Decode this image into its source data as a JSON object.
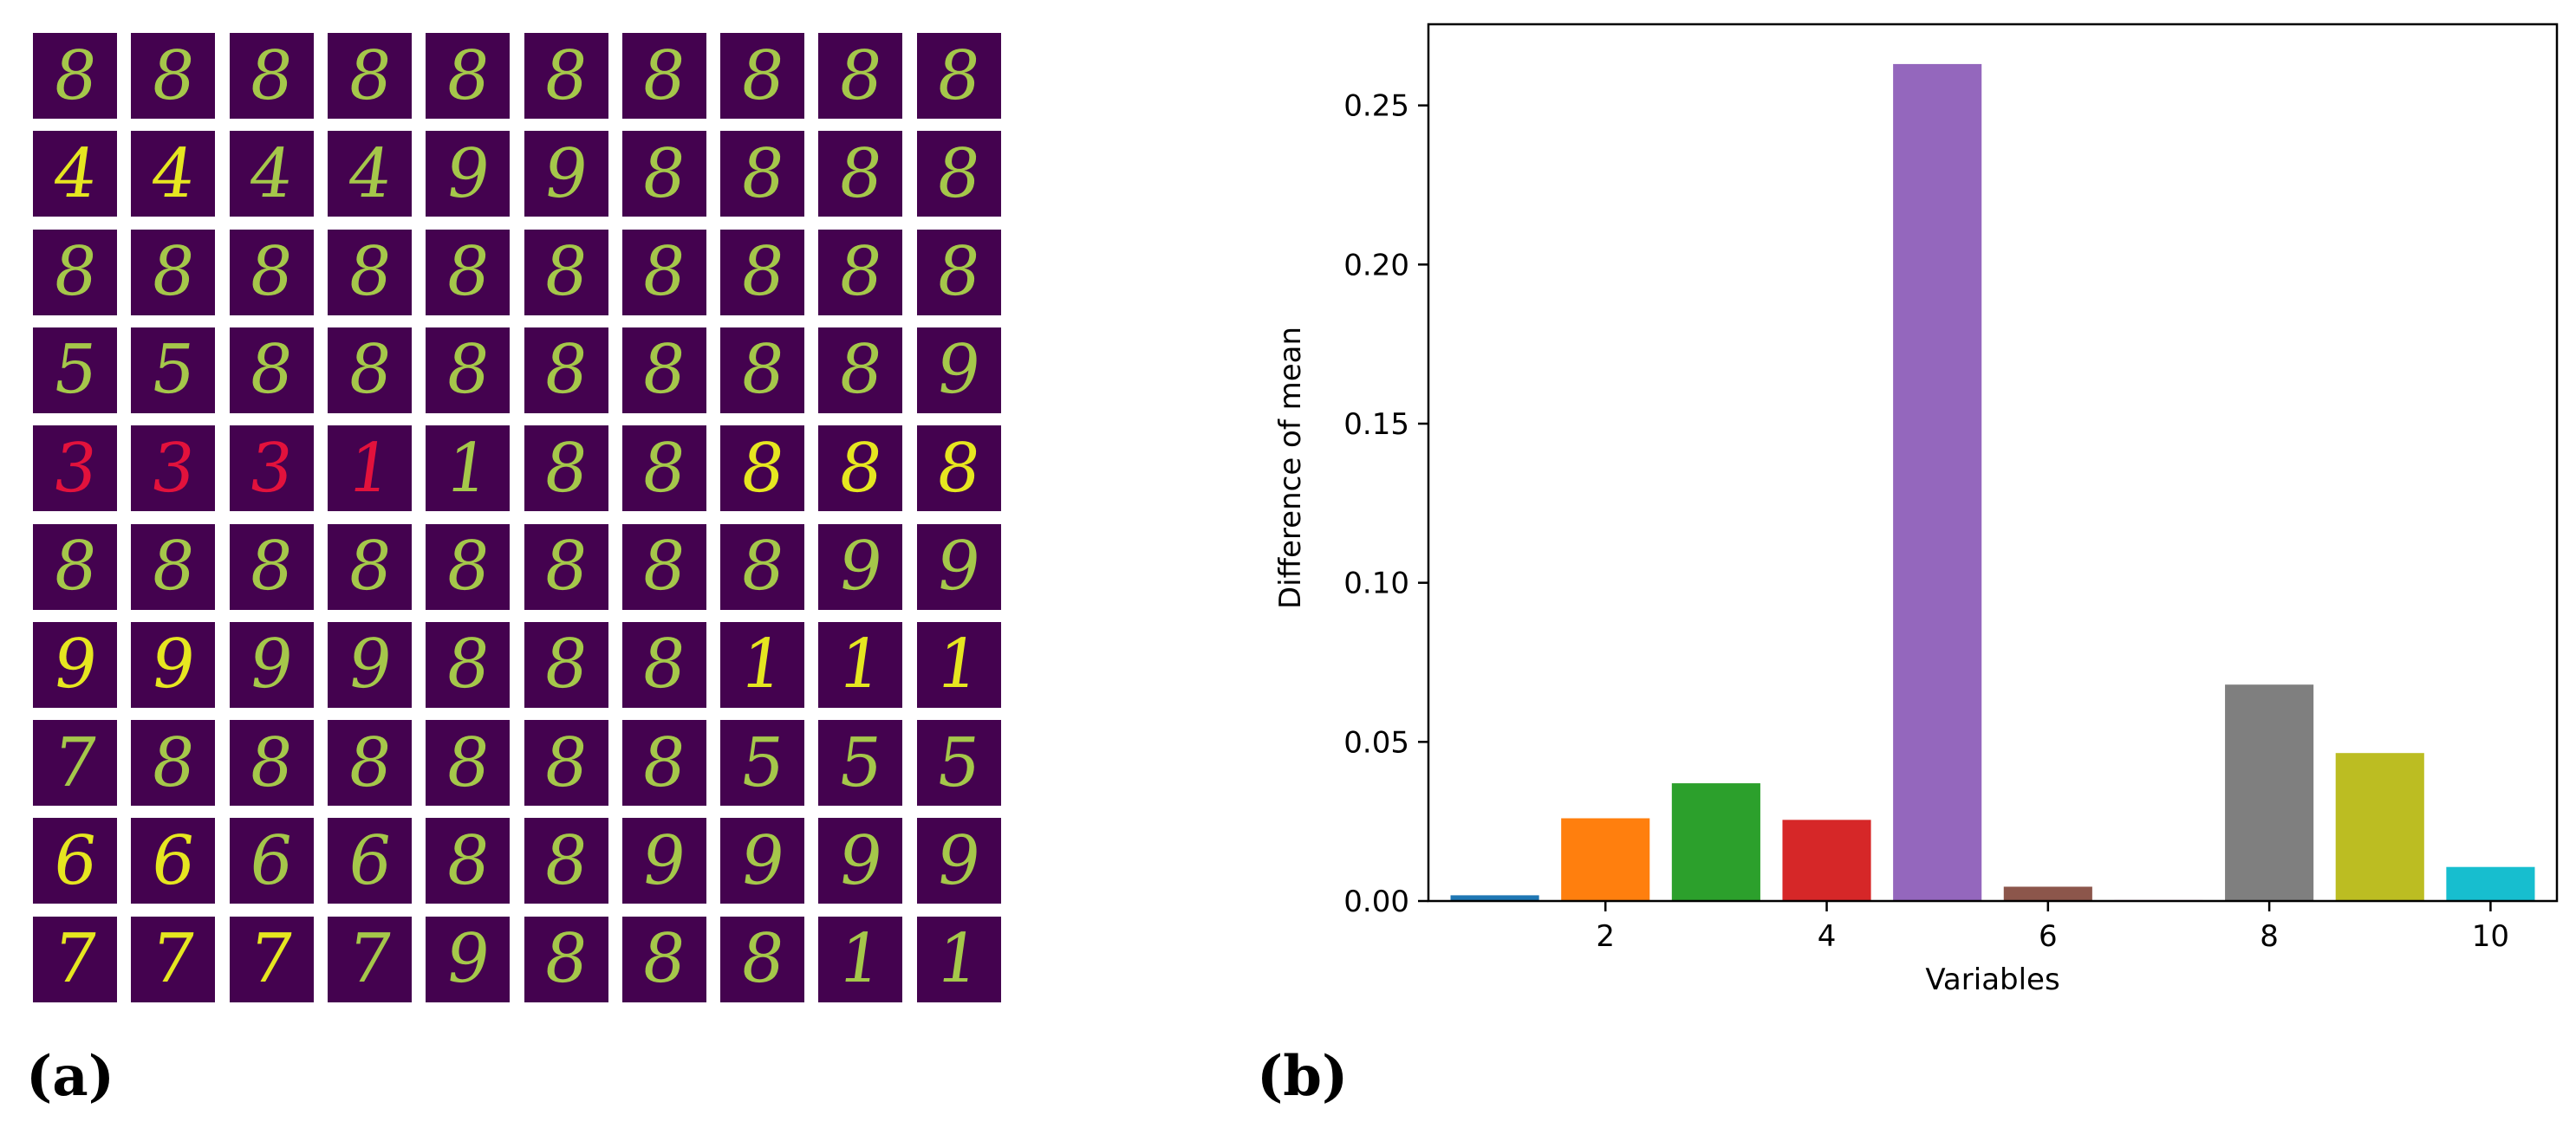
{
  "panel_a": {
    "label": "(a)",
    "grid_rows": [
      [
        "8",
        "8",
        "8",
        "8",
        "8",
        "8",
        "8",
        "8",
        "8",
        "8"
      ],
      [
        "4",
        "4",
        "4",
        "4",
        "9",
        "9",
        "8",
        "8",
        "8",
        "8"
      ],
      [
        "8",
        "8",
        "8",
        "8",
        "8",
        "8",
        "8",
        "8",
        "8",
        "8"
      ],
      [
        "5",
        "5",
        "8",
        "8",
        "8",
        "8",
        "8",
        "8",
        "8",
        "9"
      ],
      [
        "3",
        "3",
        "3",
        "1",
        "1",
        "8",
        "8",
        "8",
        "8",
        "8"
      ],
      [
        "8",
        "8",
        "8",
        "8",
        "8",
        "8",
        "8",
        "8",
        "9",
        "9"
      ],
      [
        "9",
        "9",
        "9",
        "9",
        "8",
        "8",
        "8",
        "1",
        "1",
        "1"
      ],
      [
        "7",
        "8",
        "8",
        "8",
        "8",
        "8",
        "8",
        "5",
        "5",
        "5"
      ],
      [
        "6",
        "6",
        "6",
        "6",
        "8",
        "8",
        "9",
        "9",
        "9",
        "9"
      ],
      [
        "7",
        "7",
        "7",
        "7",
        "9",
        "8",
        "8",
        "8",
        "1",
        "1"
      ]
    ],
    "red_cells": [
      [
        4,
        0
      ],
      [
        4,
        1
      ],
      [
        4,
        2
      ],
      [
        4,
        3
      ]
    ],
    "colors": {
      "background": "#44024f",
      "dim_digit": "#a5c74a",
      "bright_digit": "#e6e620",
      "red_digit": "#e2123c"
    },
    "bright_cells": [
      [
        1,
        0
      ],
      [
        1,
        1
      ],
      [
        6,
        0
      ],
      [
        6,
        1
      ],
      [
        6,
        7
      ],
      [
        6,
        8
      ],
      [
        6,
        9
      ],
      [
        8,
        0
      ],
      [
        8,
        1
      ],
      [
        9,
        0
      ],
      [
        9,
        1
      ],
      [
        9,
        2
      ],
      [
        4,
        7
      ],
      [
        4,
        8
      ],
      [
        4,
        9
      ]
    ]
  },
  "panel_b": {
    "label": "(b)"
  },
  "chart_data": {
    "type": "bar",
    "x": [
      1,
      2,
      3,
      4,
      5,
      6,
      7,
      8,
      9,
      10
    ],
    "values": [
      0.0018,
      0.026,
      0.037,
      0.0255,
      0.263,
      0.0045,
      0.0003,
      0.068,
      0.0465,
      0.0107
    ],
    "colors": [
      "#1f77b4",
      "#ff7f0e",
      "#2ca02c",
      "#d62728",
      "#9467bd",
      "#8c564b",
      "#e377c2",
      "#7f7f7f",
      "#bcbd22",
      "#17becf"
    ],
    "xlabel": "Variables",
    "ylabel": "Difference of mean",
    "xticks": [
      "2",
      "4",
      "6",
      "8",
      "10"
    ],
    "xtick_values": [
      2,
      4,
      6,
      8,
      10
    ],
    "yticks": [
      "0.00",
      "0.05",
      "0.10",
      "0.15",
      "0.20",
      "0.25"
    ],
    "ytick_values": [
      0.0,
      0.05,
      0.1,
      0.15,
      0.2,
      0.25
    ],
    "ylim": [
      0,
      0.2755
    ],
    "xlim": [
      0.4,
      10.6
    ],
    "grid": false
  }
}
